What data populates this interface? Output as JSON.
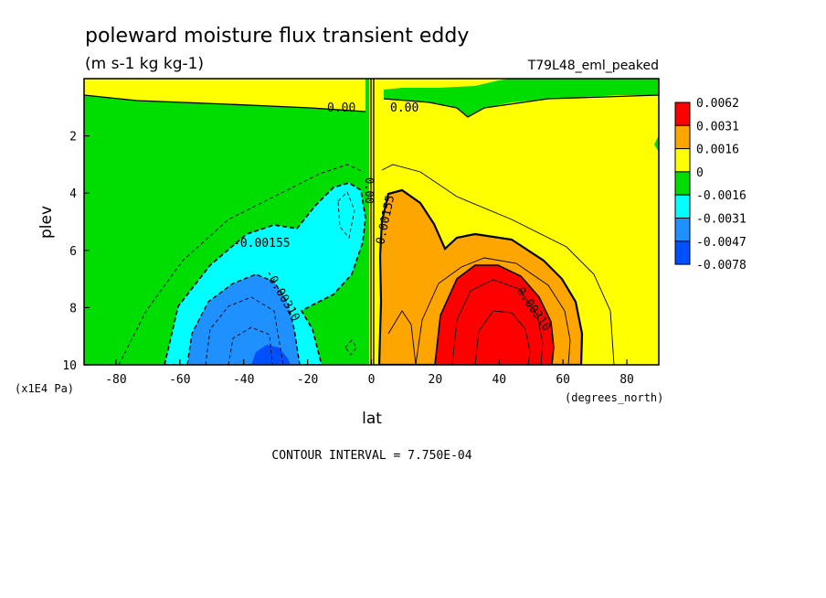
{
  "chart_data": {
    "type": "heatmap",
    "title": "poleward moisture flux transient eddy",
    "subtitle": "(m s-1 kg kg-1)",
    "run_label": "T79L48_eml_peaked",
    "xlabel": "lat",
    "x_units": "(degrees_north)",
    "ylabel": "plev",
    "y_units": "(x1E4 Pa)",
    "xlim": [
      -90,
      90
    ],
    "ylim": [
      10,
      0
    ],
    "x_ticks": [
      "-80",
      "-60",
      "-40",
      "-20",
      "0",
      "20",
      "40",
      "60",
      "80"
    ],
    "y_ticks": [
      "2",
      "4",
      "6",
      "8",
      "10"
    ],
    "footer": "CONTOUR INTERVAL = 7.750E-04",
    "contour_labels": [
      "0.00",
      "0.00",
      "0.00",
      "-0.00155",
      "-0.00310",
      "0.00155",
      "0.00310"
    ],
    "colorbar": {
      "levels": [
        "0.0062",
        "0.0031",
        "0.0016",
        "0",
        "-0.0016",
        "-0.0031",
        "-0.0047",
        "-0.0078"
      ],
      "colors": [
        "#ff0000",
        "#ffa500",
        "#ffff00",
        "#00dd00",
        "#00ffff",
        "#1e90ff",
        "#0050ff"
      ]
    },
    "regions": {
      "sh_cyan": {
        "color": "#00ffff",
        "lat": [
          -62,
          2
        ],
        "plev": [
          3.6,
          10
        ]
      },
      "sh_blue": {
        "color": "#1e90ff",
        "lat": [
          -55,
          -15
        ],
        "plev": [
          6.8,
          10
        ]
      },
      "sh_darkblue": {
        "color": "#0050ff",
        "lat": [
          -40,
          -25
        ],
        "plev": [
          9.2,
          10
        ]
      },
      "nh_orange": {
        "color": "#ffa500",
        "lat": [
          3,
          66
        ],
        "plev": [
          3.5,
          10
        ]
      },
      "nh_red": {
        "color": "#ff0000",
        "lat": [
          18,
          58
        ],
        "plev": [
          6.8,
          10
        ]
      }
    }
  }
}
